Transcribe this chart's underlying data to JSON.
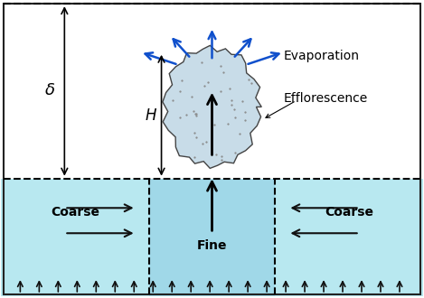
{
  "fig_width": 4.69,
  "fig_height": 3.3,
  "dpi": 100,
  "bg_color": "#ffffff",
  "top_region_color": "#ffffff",
  "coarse_color": "#b8e8f0",
  "fine_color": "#b8e8f0",
  "efflorescence_color": "#d8e8f0",
  "border_color": "#222222",
  "blue_arrow_color": "#1050cc",
  "black_arrow_color": "#111111",
  "label_coarse_left": "Coarse",
  "label_coarse_right": "Coarse",
  "label_fine": "Fine",
  "label_evaporation": "Evaporation",
  "label_efflorescence": "Efflorescence",
  "label_delta": "δ",
  "label_H": "H",
  "font_size_labels": 9,
  "font_size_annotations": 10
}
